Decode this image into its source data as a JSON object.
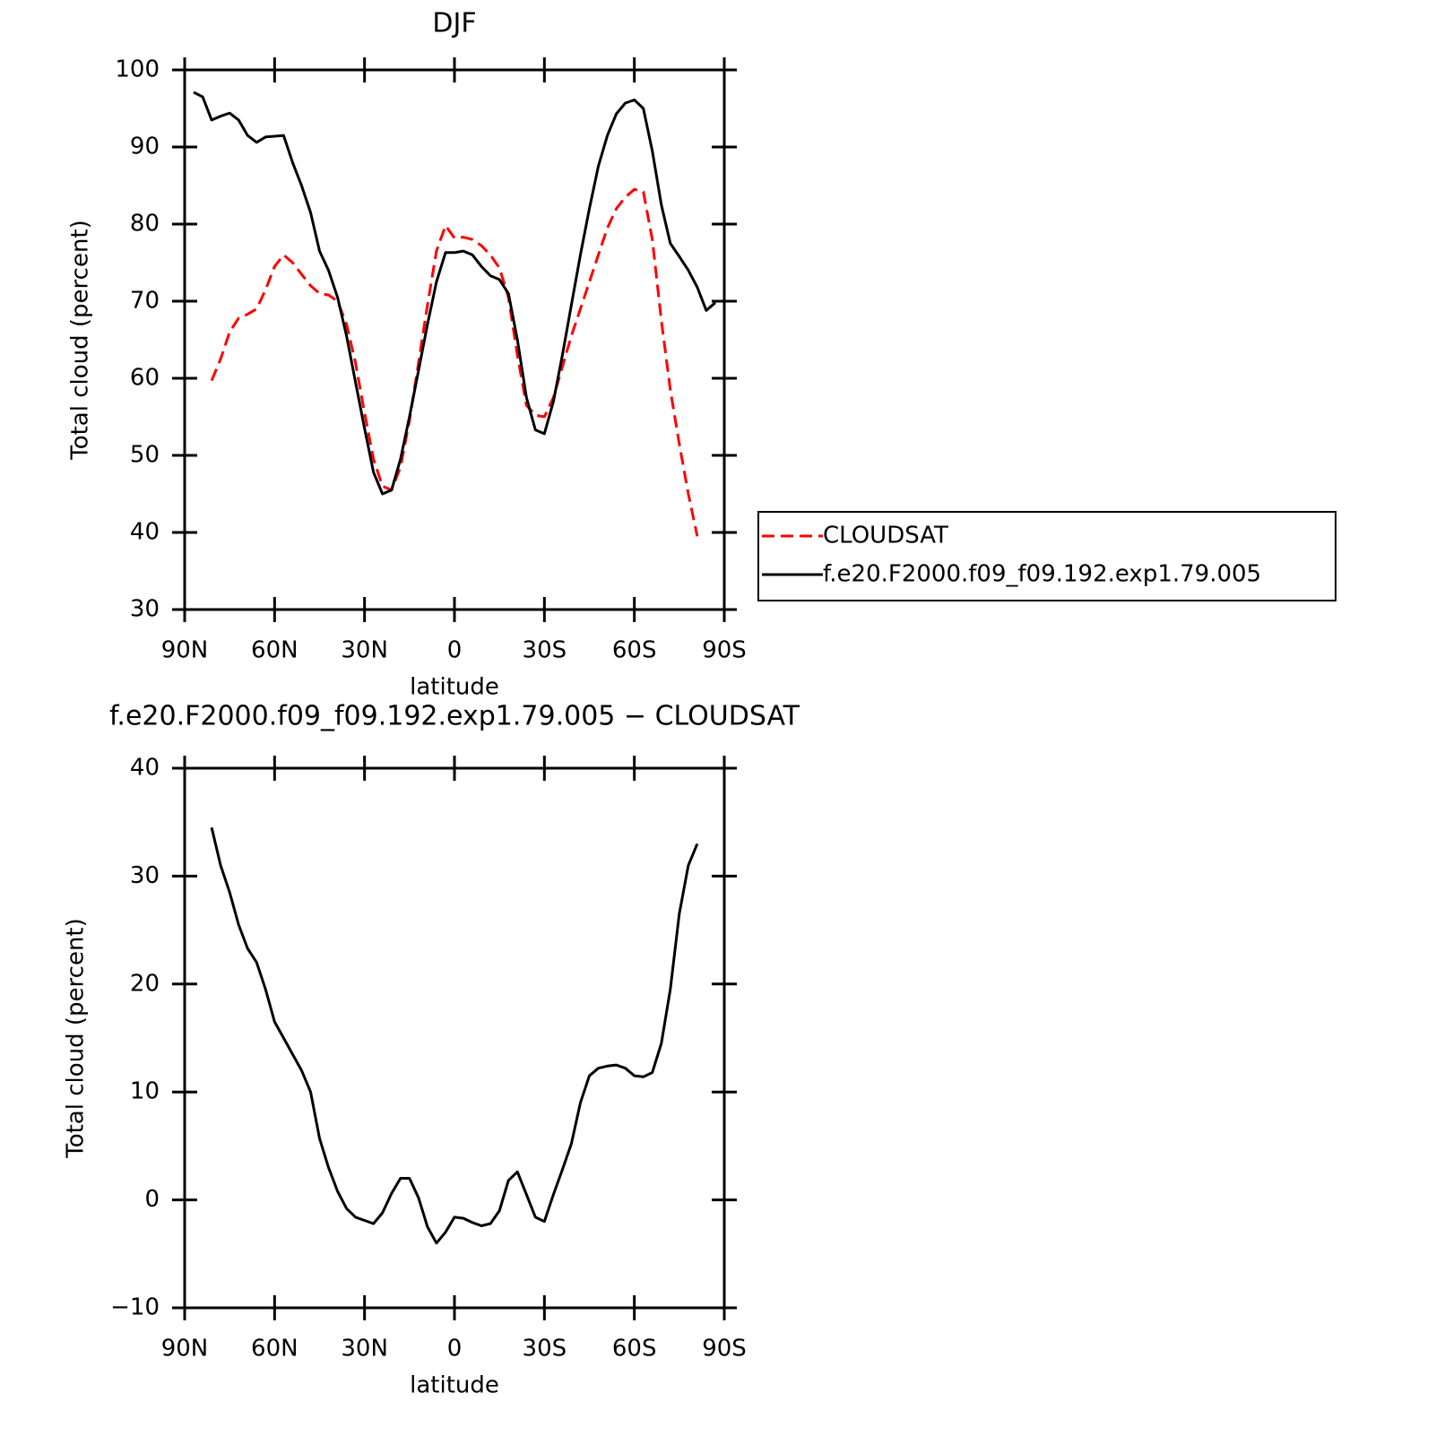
{
  "chart_data": [
    {
      "type": "line",
      "title": "DJF",
      "xlabel": "latitude",
      "ylabel": "Total cloud (percent)",
      "x": [
        87,
        84,
        81,
        78,
        75,
        72,
        69,
        66,
        63,
        60,
        57,
        54,
        51,
        48,
        45,
        42,
        39,
        36,
        33,
        30,
        27,
        24,
        21,
        18,
        15,
        12,
        9,
        6,
        3,
        0,
        -3,
        -6,
        -9,
        -12,
        -15,
        -18,
        -21,
        -24,
        -27,
        -30,
        -33,
        -36,
        -39,
        -42,
        -45,
        -48,
        -51,
        -54,
        -57,
        -60,
        -63,
        -66,
        -69,
        -72,
        -75,
        -78,
        -81,
        -84,
        -87
      ],
      "xlim": [
        90,
        -90
      ],
      "xticks": [
        {
          "value": 90,
          "label": "90N"
        },
        {
          "value": 60,
          "label": "60N"
        },
        {
          "value": 30,
          "label": "30N"
        },
        0,
        {
          "value": -30,
          "label": "30S"
        },
        {
          "value": -60,
          "label": "60S"
        },
        {
          "value": -90,
          "label": "90S"
        }
      ],
      "ylim": [
        30,
        100
      ],
      "yticks": [
        30,
        40,
        50,
        60,
        70,
        80,
        90,
        100
      ],
      "legend": "right",
      "series": [
        {
          "name": "CLOUDSAT",
          "color": "#ff0000",
          "linestyle": "dashed",
          "values": [
            null,
            null,
            59.7,
            62.5,
            66,
            67.8,
            68.3,
            69,
            71.5,
            74.5,
            76,
            75,
            73.5,
            72,
            71,
            70.8,
            70,
            67,
            62,
            55.5,
            49.5,
            46,
            45.5,
            48.5,
            54.5,
            62,
            69.5,
            76.5,
            79.8,
            78.2,
            78.3,
            78,
            77.2,
            76,
            74.3,
            70.5,
            63,
            56.5,
            55.2,
            55,
            57.5,
            61.5,
            65.5,
            69,
            72.5,
            76,
            79.5,
            82,
            83.5,
            84.5,
            84.2,
            78,
            67.5,
            58.5,
            51.5,
            45,
            39.5,
            null,
            null
          ]
        },
        {
          "name": "f.e20.F2000.f09_f09.192.exp1.79.005",
          "color": "#000000",
          "linestyle": "solid",
          "values": [
            97.1,
            96.5,
            93.5,
            94,
            94.4,
            93.5,
            91.5,
            90.6,
            91.3,
            91.4,
            91.5,
            88,
            85,
            81.5,
            76.5,
            74,
            70.5,
            65.5,
            59.5,
            53.5,
            47.8,
            45,
            45.5,
            49.5,
            55,
            61,
            67,
            72.5,
            76.3,
            76.3,
            76.5,
            76,
            74.5,
            73.3,
            72.8,
            71,
            65,
            57.5,
            53.3,
            52.8,
            57,
            63,
            69.5,
            76,
            82,
            87.5,
            91.5,
            94.3,
            95.7,
            96.1,
            95,
            89.5,
            82.5,
            77.5,
            75.8,
            74,
            71.8,
            68.8,
            69.8
          ]
        }
      ]
    },
    {
      "type": "line",
      "title": "f.e20.F2000.f09_f09.192.exp1.79.005 − CLOUDSAT",
      "xlabel": "latitude",
      "ylabel": "Total cloud (percent)",
      "x": [
        87,
        84,
        81,
        78,
        75,
        72,
        69,
        66,
        63,
        60,
        57,
        54,
        51,
        48,
        45,
        42,
        39,
        36,
        33,
        30,
        27,
        24,
        21,
        18,
        15,
        12,
        9,
        6,
        3,
        0,
        -3,
        -6,
        -9,
        -12,
        -15,
        -18,
        -21,
        -24,
        -27,
        -30,
        -33,
        -36,
        -39,
        -42,
        -45,
        -48,
        -51,
        -54,
        -57,
        -60,
        -63,
        -66,
        -69,
        -72,
        -75,
        -78,
        -81,
        -84,
        -87
      ],
      "xlim": [
        90,
        -90
      ],
      "xticks": [
        {
          "value": 90,
          "label": "90N"
        },
        {
          "value": 60,
          "label": "60N"
        },
        {
          "value": 30,
          "label": "30N"
        },
        0,
        {
          "value": -30,
          "label": "30S"
        },
        {
          "value": -60,
          "label": "60S"
        },
        {
          "value": -90,
          "label": "90S"
        }
      ],
      "ylim": [
        -10,
        40
      ],
      "yticks": [
        {
          "value": -10,
          "label": "−10"
        },
        0,
        10,
        20,
        30,
        40
      ],
      "series": [
        {
          "color": "#000000",
          "linestyle": "solid",
          "values": [
            null,
            null,
            34.5,
            31,
            28.5,
            25.5,
            23.3,
            22,
            19.5,
            16.5,
            15,
            13.5,
            12,
            10,
            5.7,
            3,
            0.8,
            -0.8,
            -1.6,
            -1.9,
            -2.2,
            -1.2,
            0.6,
            2,
            2,
            0.2,
            -2.5,
            -4,
            -3,
            -1.6,
            -1.7,
            -2.1,
            -2.4,
            -2.2,
            -1,
            1.8,
            2.6,
            0.5,
            -1.6,
            -2,
            0.5,
            2.8,
            5.2,
            9,
            11.5,
            12.2,
            12.4,
            12.5,
            12.2,
            11.5,
            11.4,
            11.8,
            14.5,
            19.5,
            26.5,
            31,
            33,
            null,
            null
          ]
        }
      ]
    }
  ]
}
